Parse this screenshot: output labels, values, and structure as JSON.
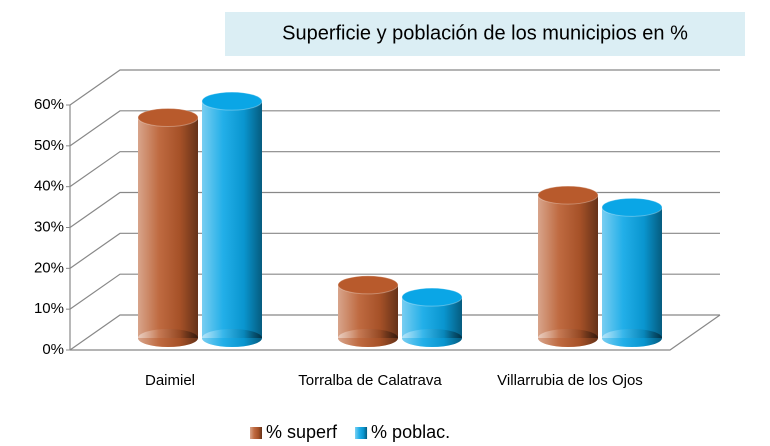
{
  "chart_data": {
    "type": "bar3d",
    "title": "Superficie y población de los municipios en %",
    "categories": [
      "Daimiel",
      "Torralba de Calatrava",
      "Villarrubia de los Ojos"
    ],
    "series": [
      {
        "name": "% superf",
        "color": "#b85a2c",
        "values": [
          54,
          13,
          35
        ]
      },
      {
        "name": "% poblac.",
        "color": "#0aa6e6",
        "values": [
          58,
          10,
          32
        ]
      }
    ],
    "ylim": [
      0,
      60
    ],
    "yticks": [
      {
        "value": 0,
        "label": "0%"
      },
      {
        "value": 10,
        "label": "10%"
      },
      {
        "value": 20,
        "label": "20%"
      },
      {
        "value": 30,
        "label": "30%"
      },
      {
        "value": 40,
        "label": "40%"
      },
      {
        "value": 50,
        "label": "50%"
      },
      {
        "value": 60,
        "label": "60%"
      }
    ],
    "grid": true,
    "legend": "bottom"
  }
}
